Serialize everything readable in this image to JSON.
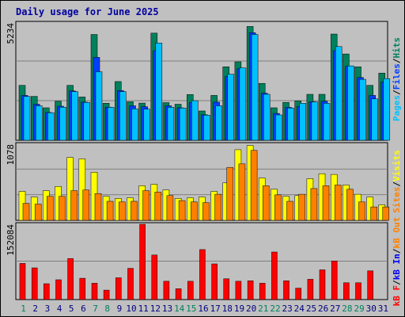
{
  "title": "Daily usage for June 2025",
  "colors": {
    "outer_bg": "#c0c0c0",
    "panel_bg": "#c0c0c0",
    "title": "#0000a0",
    "hits": "#00805c",
    "files": "#0040ff",
    "pages": "#00c0ff",
    "visits": "#ffff00",
    "sites": "#ff8000",
    "kb_out": "#ff8000",
    "kb_in": "#0000ff",
    "kb_f": "#ff0000",
    "volume": "#ff0000",
    "weekend_day": "#00805c",
    "weekday": "#000080"
  },
  "chart_data": [
    {
      "type": "bar",
      "panel": "hits-files-pages",
      "ymax_label": "5234",
      "ylim": [
        0,
        5234
      ],
      "legend": [
        "Pages",
        "/",
        "Files",
        "/",
        "Hits"
      ],
      "categories": [
        "1",
        "2",
        "3",
        "4",
        "5",
        "6",
        "7",
        "8",
        "9",
        "10",
        "11",
        "12",
        "13",
        "14",
        "15",
        "16",
        "17",
        "18",
        "19",
        "20",
        "21",
        "22",
        "23",
        "24",
        "25",
        "26",
        "27",
        "28",
        "29",
        "30",
        "31"
      ],
      "series": [
        {
          "name": "Hits",
          "values": [
            2450,
            1960,
            1450,
            1740,
            2450,
            1930,
            4720,
            1650,
            2620,
            1720,
            1660,
            4780,
            1680,
            1610,
            2040,
            1310,
            2000,
            3280,
            3500,
            5080,
            2540,
            1450,
            1690,
            1760,
            2050,
            2050,
            4740,
            3850,
            3280,
            2450,
            3000
          ]
        },
        {
          "name": "Files",
          "values": [
            2000,
            1610,
            1240,
            1520,
            2200,
            1700,
            3700,
            1480,
            2220,
            1540,
            1500,
            4000,
            1540,
            1450,
            1690,
            1140,
            1700,
            2850,
            3200,
            4800,
            2100,
            1200,
            1470,
            1510,
            1720,
            1740,
            4000,
            3300,
            2800,
            2000,
            2600
          ]
        },
        {
          "name": "Pages",
          "values": [
            1960,
            1540,
            1230,
            1480,
            2170,
            1690,
            3060,
            1470,
            2170,
            1400,
            1390,
            4340,
            1470,
            1440,
            1770,
            1120,
            1540,
            2950,
            3230,
            4720,
            2050,
            1130,
            1440,
            1650,
            1710,
            1650,
            4180,
            3320,
            2720,
            1850,
            2750
          ]
        }
      ]
    },
    {
      "type": "bar",
      "panel": "visits-sites",
      "ymax_label": "1078",
      "ylim": [
        0,
        1078
      ],
      "legend": [
        "Sites",
        "/",
        "Visits"
      ],
      "categories": [
        "1",
        "2",
        "3",
        "4",
        "5",
        "6",
        "7",
        "8",
        "9",
        "10",
        "11",
        "12",
        "13",
        "14",
        "15",
        "16",
        "17",
        "18",
        "19",
        "20",
        "21",
        "22",
        "23",
        "24",
        "25",
        "26",
        "27",
        "28",
        "29",
        "30",
        "31"
      ],
      "series": [
        {
          "name": "Visits",
          "values": [
            410,
            330,
            420,
            480,
            890,
            870,
            680,
            340,
            310,
            320,
            490,
            510,
            430,
            310,
            320,
            330,
            410,
            530,
            1000,
            1060,
            600,
            440,
            340,
            350,
            590,
            660,
            650,
            500,
            370,
            330,
            220
          ]
        },
        {
          "name": "Sites",
          "values": [
            240,
            230,
            340,
            340,
            420,
            430,
            380,
            270,
            260,
            270,
            420,
            400,
            350,
            280,
            260,
            250,
            370,
            750,
            800,
            990,
            490,
            360,
            270,
            370,
            450,
            490,
            500,
            440,
            260,
            190,
            190
          ]
        }
      ]
    },
    {
      "type": "bar",
      "panel": "volume",
      "ymax_label": "152084",
      "ylim": [
        0,
        152084
      ],
      "legend": [
        "kB F",
        "/",
        "kB In",
        "/",
        "kB Out"
      ],
      "categories": [
        "1",
        "2",
        "3",
        "4",
        "5",
        "6",
        "7",
        "8",
        "9",
        "10",
        "11",
        "12",
        "13",
        "14",
        "15",
        "16",
        "17",
        "18",
        "19",
        "20",
        "21",
        "22",
        "23",
        "24",
        "25",
        "26",
        "27",
        "28",
        "29",
        "30",
        "31"
      ],
      "series": [
        {
          "name": "kB F",
          "values": [
            73000,
            64000,
            32000,
            40000,
            83000,
            43000,
            33000,
            19000,
            44000,
            63000,
            152084,
            90000,
            37000,
            22000,
            37000,
            101000,
            72000,
            42000,
            37000,
            38000,
            33000,
            96000,
            38000,
            23000,
            41000,
            60000,
            78000,
            34000,
            34000,
            58000,
            0
          ]
        }
      ]
    }
  ],
  "x_labels": [
    "1",
    "2",
    "3",
    "4",
    "5",
    "6",
    "7",
    "8",
    "9",
    "10",
    "11",
    "12",
    "13",
    "14",
    "15",
    "16",
    "17",
    "18",
    "19",
    "20",
    "21",
    "22",
    "23",
    "24",
    "25",
    "26",
    "27",
    "28",
    "29",
    "30",
    "31"
  ],
  "weekend_days": [
    1,
    7,
    8,
    14,
    15,
    21,
    22,
    28,
    29
  ]
}
